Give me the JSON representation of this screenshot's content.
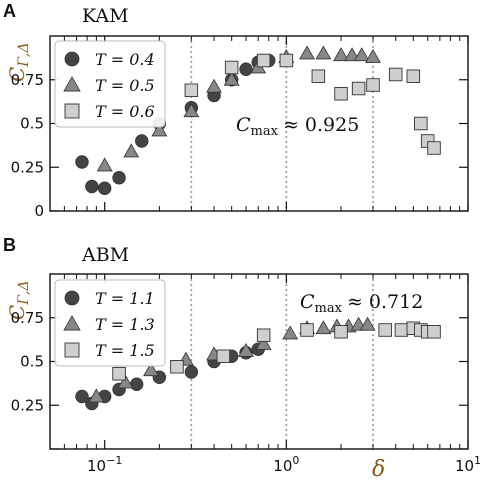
{
  "chart_data": [
    {
      "panel_label": "A",
      "title": "KAM",
      "type": "scatter",
      "ylabel_main": "C",
      "ylabel_sub": "Γ,Δ",
      "xscale": "log",
      "xlim": [
        0.05,
        10
      ],
      "ylim": [
        0,
        1.0
      ],
      "yticks": [
        "0",
        "0.25",
        "0.5",
        "0.75"
      ],
      "vlines": [
        0.3,
        1.0,
        3.0
      ],
      "annotation": {
        "lhs": "C",
        "sub": "max",
        "rhs": "≈ 0.925"
      },
      "legend_position": "upper-left",
      "series": [
        {
          "name": "T = 0.4",
          "marker": "circle",
          "color": "#444444",
          "x": [
            0.075,
            0.085,
            0.1,
            0.12,
            0.16,
            0.2,
            0.3,
            0.4,
            0.5,
            0.6,
            0.7,
            0.8
          ],
          "y": [
            0.28,
            0.14,
            0.13,
            0.19,
            0.4,
            0.5,
            0.59,
            0.66,
            0.75,
            0.81,
            0.85,
            0.86
          ]
        },
        {
          "name": "T = 0.5",
          "marker": "triangle",
          "color": "#888888",
          "x": [
            0.1,
            0.14,
            0.2,
            0.3,
            0.4,
            0.5,
            0.7,
            1.0,
            1.3,
            1.6,
            2.0,
            2.3,
            2.6,
            3.0
          ],
          "y": [
            0.26,
            0.34,
            0.46,
            0.57,
            0.71,
            0.75,
            0.82,
            0.88,
            0.9,
            0.9,
            0.89,
            0.89,
            0.89,
            0.88
          ]
        },
        {
          "name": "T = 0.6",
          "marker": "square",
          "color": "#cfcfcf",
          "x": [
            0.3,
            0.5,
            0.75,
            1.0,
            1.5,
            2.0,
            2.5,
            3.0,
            4.0,
            5.0,
            5.5,
            6.0,
            6.5
          ],
          "y": [
            0.69,
            0.82,
            0.86,
            0.86,
            0.77,
            0.67,
            0.7,
            0.72,
            0.78,
            0.77,
            0.5,
            0.4,
            0.36
          ]
        }
      ]
    },
    {
      "panel_label": "B",
      "title": "ABM",
      "type": "scatter",
      "ylabel_main": "C",
      "ylabel_sub": "Γ,Δ",
      "xlabel": "δ",
      "xscale": "log",
      "xlim": [
        0.05,
        10
      ],
      "ylim": [
        0,
        1.0
      ],
      "xticks": [
        {
          "base": "10",
          "exp": "−1"
        },
        {
          "base": "10",
          "exp": "0"
        },
        {
          "base": "10",
          "exp": "1"
        }
      ],
      "yticks": [
        "0.25",
        "0.5",
        "0.75"
      ],
      "vlines": [
        0.3,
        1.0,
        3.0
      ],
      "annotation": {
        "lhs": "C",
        "sub": "max",
        "rhs": "≈ 0.712"
      },
      "legend_position": "upper-left",
      "series": [
        {
          "name": "T = 1.1",
          "marker": "circle",
          "color": "#444444",
          "x": [
            0.075,
            0.085,
            0.1,
            0.12,
            0.15,
            0.2,
            0.3,
            0.4,
            0.5,
            0.6,
            0.7
          ],
          "y": [
            0.3,
            0.26,
            0.3,
            0.34,
            0.37,
            0.41,
            0.44,
            0.5,
            0.53,
            0.55,
            0.57
          ]
        },
        {
          "name": "T = 1.3",
          "marker": "triangle",
          "color": "#888888",
          "x": [
            0.09,
            0.13,
            0.18,
            0.28,
            0.4,
            0.6,
            0.75,
            1.05,
            1.3,
            1.6,
            1.9,
            2.2,
            2.5,
            2.8
          ],
          "y": [
            0.3,
            0.38,
            0.45,
            0.51,
            0.54,
            0.56,
            0.6,
            0.66,
            0.69,
            0.69,
            0.7,
            0.7,
            0.71,
            0.71
          ]
        },
        {
          "name": "T = 1.5",
          "marker": "square",
          "color": "#cfcfcf",
          "x": [
            0.12,
            0.25,
            0.45,
            0.75,
            1.3,
            2.0,
            3.5,
            4.3,
            5.0,
            5.5,
            6.0,
            6.5
          ],
          "y": [
            0.43,
            0.47,
            0.53,
            0.65,
            0.68,
            0.67,
            0.68,
            0.68,
            0.69,
            0.68,
            0.67,
            0.67
          ]
        }
      ]
    }
  ]
}
